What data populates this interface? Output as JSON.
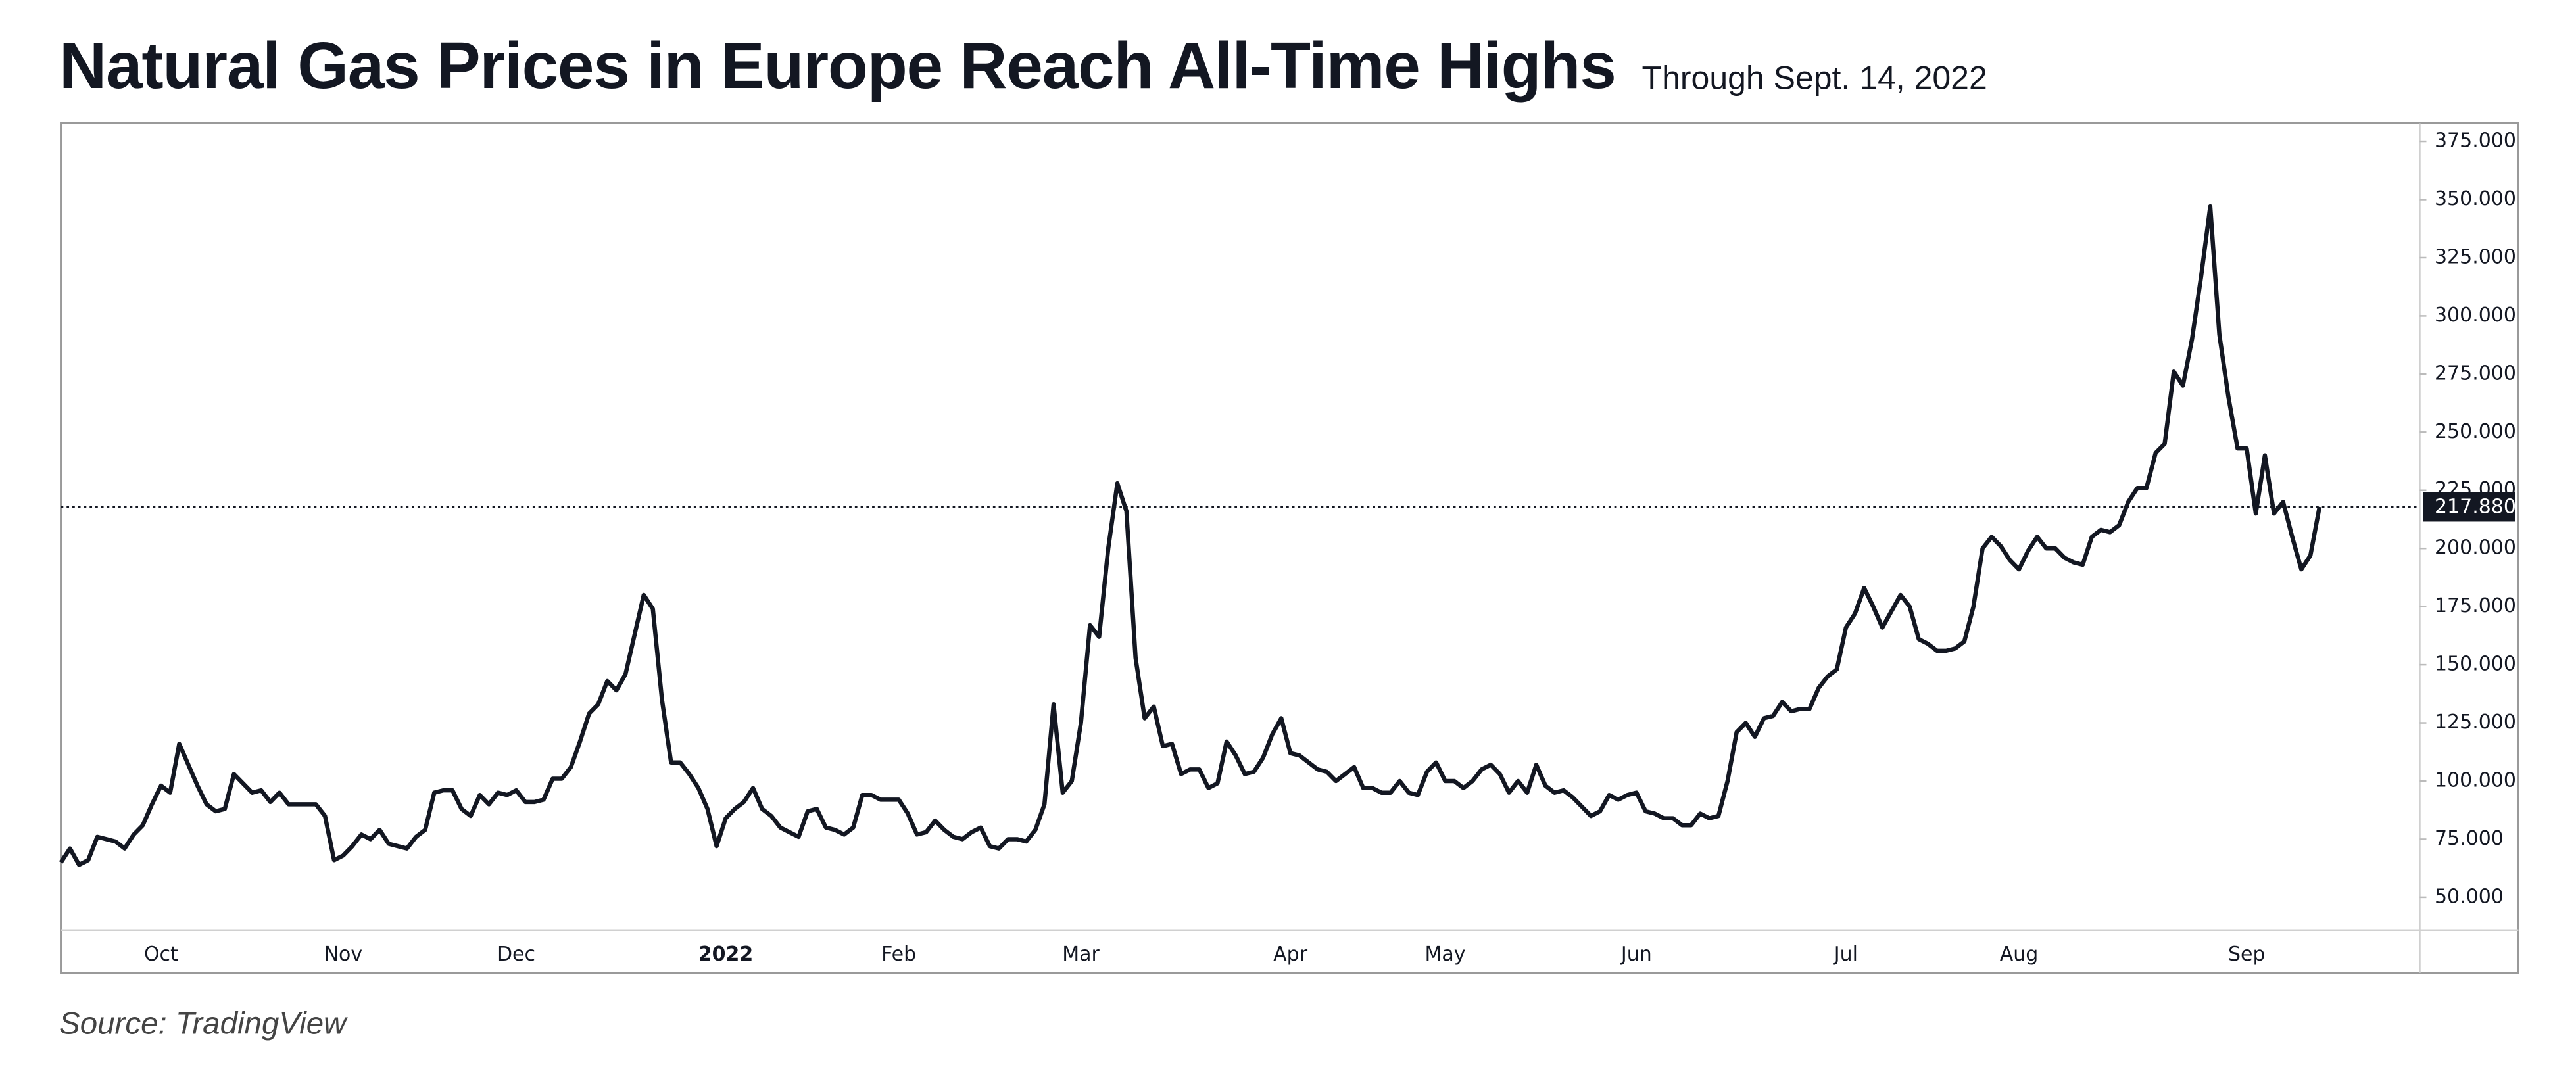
{
  "chart_data": {
    "type": "line",
    "title": "Natural Gas Prices in Europe Reach All-Time Highs",
    "subtitle": "Through Sept. 14, 2022",
    "source": "Source: TradingView",
    "categories": [
      null,
      null,
      null,
      null,
      null,
      null,
      null,
      null,
      null,
      null,
      null,
      "Oct",
      null,
      null,
      null,
      null,
      null,
      null,
      null,
      null,
      null,
      null,
      null,
      null,
      null,
      null,
      null,
      null,
      null,
      null,
      null,
      "Nov",
      null,
      null,
      null,
      null,
      null,
      null,
      null,
      null,
      null,
      null,
      null,
      null,
      null,
      null,
      null,
      null,
      null,
      null,
      "Dec",
      null,
      null,
      null,
      null,
      null,
      null,
      null,
      null,
      null,
      null,
      null,
      null,
      null,
      null,
      null,
      null,
      null,
      null,
      null,
      null,
      null,
      null,
      "2022",
      null,
      null,
      null,
      null,
      null,
      null,
      null,
      null,
      null,
      null,
      null,
      null,
      null,
      null,
      null,
      null,
      null,
      null,
      "Feb",
      null,
      null,
      null,
      null,
      null,
      null,
      null,
      null,
      null,
      null,
      null,
      null,
      null,
      null,
      null,
      null,
      null,
      null,
      null,
      "Mar",
      null,
      null,
      null,
      null,
      null,
      null,
      null,
      null,
      null,
      null,
      null,
      null,
      null,
      null,
      null,
      null,
      null,
      null,
      null,
      null,
      null,
      null,
      "Apr",
      null,
      null,
      null,
      null,
      null,
      null,
      null,
      null,
      null,
      null,
      null,
      null,
      null,
      null,
      null,
      null,
      "May",
      null,
      null,
      null,
      null,
      null,
      null,
      null,
      null,
      null,
      null,
      null,
      null,
      null,
      null,
      null,
      null,
      null,
      null,
      null,
      null,
      "Jun",
      null,
      null,
      null,
      null,
      null,
      null,
      null,
      null,
      null,
      null,
      null,
      null,
      null,
      null,
      null,
      null,
      null,
      null,
      null,
      null,
      null,
      null,
      "Jul",
      null,
      null,
      null,
      null,
      null,
      null,
      null,
      null,
      null,
      null,
      null,
      null,
      null,
      null,
      null,
      null,
      null,
      null,
      "Aug",
      null,
      null,
      null,
      null,
      null,
      null,
      null,
      null,
      null,
      null,
      null,
      null,
      null,
      null,
      null,
      null,
      null,
      null,
      null,
      null,
      null,
      null,
      null,
      null,
      "Sep",
      null,
      null,
      null,
      null,
      null,
      null,
      null,
      null
    ],
    "series": [
      {
        "name": "Natural gas price",
        "color": "#131722",
        "values": [
          65,
          71,
          64,
          66,
          76,
          75,
          74,
          71,
          77,
          81,
          90,
          98,
          95,
          116,
          107,
          98,
          90,
          87,
          88,
          103,
          99,
          95,
          96,
          91,
          95,
          90,
          90,
          90,
          90,
          85,
          66,
          68,
          72,
          77,
          75,
          79,
          73,
          72,
          71,
          76,
          79,
          95,
          96,
          96,
          88,
          85,
          94,
          90,
          95,
          94,
          96,
          91,
          91,
          92,
          101,
          101,
          106,
          117,
          129,
          133,
          143,
          139,
          146,
          163,
          180,
          174,
          135,
          108,
          108,
          103,
          97,
          88,
          72,
          84,
          88,
          91,
          97,
          88,
          85,
          80,
          78,
          76,
          87,
          88,
          80,
          79,
          77,
          80,
          94,
          94,
          92,
          92,
          92,
          86,
          77,
          78,
          83,
          79,
          76,
          75,
          78,
          80,
          72,
          71,
          75,
          75,
          74,
          79,
          90,
          133,
          95,
          100,
          125,
          167,
          162,
          200,
          228,
          216,
          153,
          127,
          132,
          115,
          116,
          103,
          105,
          105,
          97,
          99,
          117,
          111,
          103,
          104,
          110,
          120,
          127,
          112,
          111,
          108,
          105,
          104,
          100,
          103,
          106,
          97,
          97,
          95,
          95,
          100,
          95,
          94,
          104,
          108,
          100,
          100,
          97,
          100,
          105,
          107,
          103,
          95,
          100,
          95,
          107,
          98,
          95,
          96,
          93,
          89,
          85,
          87,
          94,
          92,
          94,
          95,
          87,
          86,
          84,
          84,
          81,
          81,
          86,
          84,
          85,
          100,
          121,
          125,
          119,
          127,
          128,
          134,
          130,
          131,
          131,
          140,
          145,
          148,
          166,
          172,
          183,
          175,
          166,
          173,
          180,
          175,
          161,
          159,
          156,
          156,
          157,
          160,
          175,
          200,
          205,
          201,
          195,
          191,
          199,
          205,
          200,
          200,
          196,
          194,
          193,
          205,
          208,
          207,
          210,
          220,
          226,
          226,
          241,
          245,
          276,
          270,
          290,
          317,
          347,
          292,
          265,
          243,
          243,
          215,
          240,
          215,
          220,
          205,
          191,
          197,
          217.88
        ]
      }
    ],
    "current_price": {
      "value": 217.88,
      "label": "217.880"
    },
    "ylim": [
      35.9,
      382.8
    ],
    "yticks": [
      {
        "value": 50,
        "label": "50.000"
      },
      {
        "value": 75,
        "label": "75.000"
      },
      {
        "value": 100,
        "label": "100.000"
      },
      {
        "value": 125,
        "label": "125.000"
      },
      {
        "value": 150,
        "label": "150.000"
      },
      {
        "value": 175,
        "label": "175.000"
      },
      {
        "value": 200,
        "label": "200.000"
      },
      {
        "value": 225,
        "label": "225.000"
      },
      {
        "value": 250,
        "label": "250.000"
      },
      {
        "value": 275,
        "label": "275.000"
      },
      {
        "value": 300,
        "label": "300.000"
      },
      {
        "value": 325,
        "label": "325.000"
      },
      {
        "value": 350,
        "label": "350.000"
      },
      {
        "value": 375,
        "label": "375.000"
      }
    ],
    "grid": false
  }
}
